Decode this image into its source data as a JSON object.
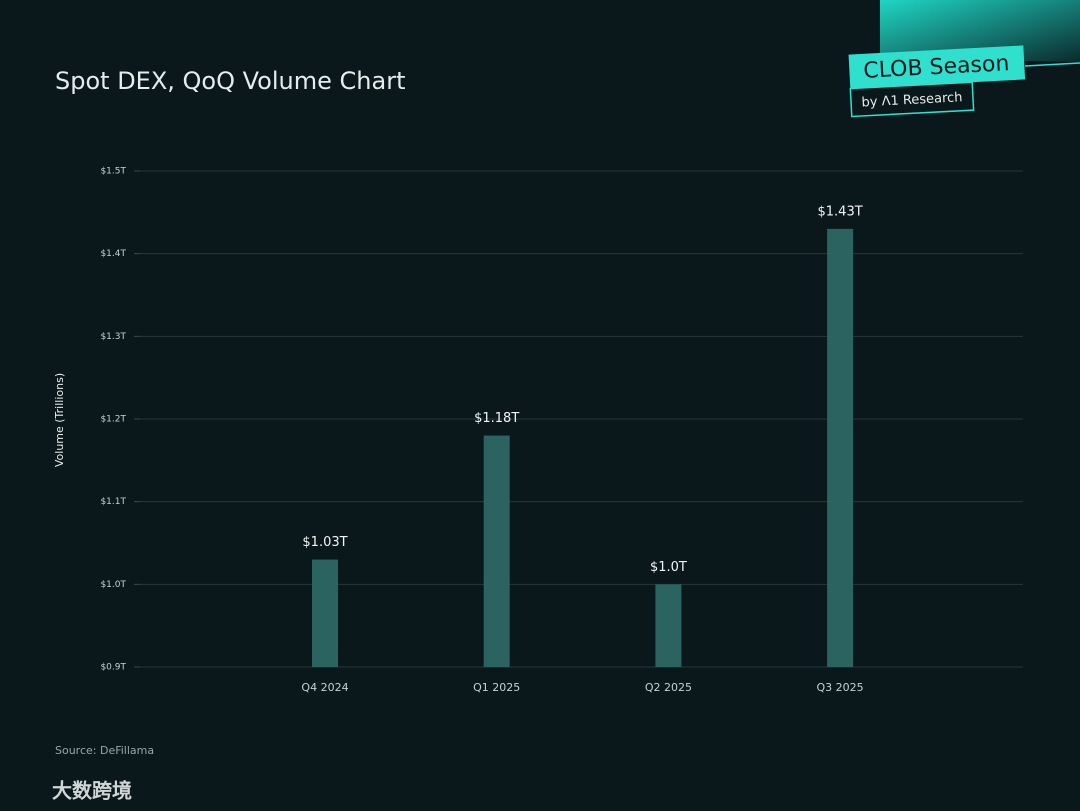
{
  "chart_data": {
    "type": "bar",
    "title": "Spot DEX, QoQ Volume Chart",
    "y_label": "Volume (Trillions)",
    "categories": [
      "Q4 2024",
      "Q1 2025",
      "Q2 2025",
      "Q3 2025"
    ],
    "values": [
      1.03,
      1.18,
      1.0,
      1.43
    ],
    "value_labels": [
      "$1.03T",
      "$1.18T",
      "$1.0T",
      "$1.43T"
    ],
    "color": "#2a6360",
    "ylim": [
      0.9,
      1.5
    ],
    "yticks": [
      {
        "value": 0.9,
        "label": "$0.9T"
      },
      {
        "value": 1.0,
        "label": "$1.0T"
      },
      {
        "value": 1.1,
        "label": "$1.1T"
      },
      {
        "value": 1.2,
        "label": "$1.2T"
      },
      {
        "value": 1.3,
        "label": "$1.3T"
      },
      {
        "value": 1.4,
        "label": "$1.4T"
      },
      {
        "value": 1.5,
        "label": "$1.5T"
      }
    ],
    "grid": true,
    "source": "Source: DeFillama",
    "brand": {
      "name": "CLOB Season",
      "byline": "by Λ1 Research"
    },
    "watermark": "大数跨境"
  }
}
